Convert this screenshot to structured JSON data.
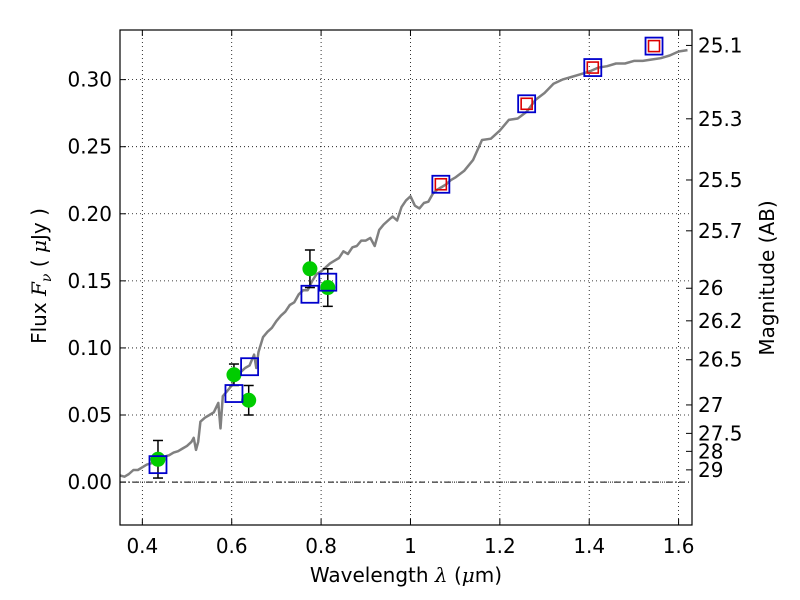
{
  "chart_data": {
    "type": "scatter",
    "xlabel": "Wavelength",
    "xlabel_symbol": "λ",
    "xlabel_unit_open": "(",
    "xlabel_unit_mu": "μ",
    "xlabel_unit_rest": "m)",
    "ylabel": "Flux",
    "ylabel_symbol_F": "F",
    "ylabel_symbol_sub": "ν",
    "ylabel_unit_open": "(",
    "ylabel_unit_mu": "μ",
    "ylabel_unit_rest": "Jy )",
    "y2label": "Magnitude (AB)",
    "xlim": [
      0.35,
      1.63
    ],
    "ylim": [
      -0.032,
      0.337
    ],
    "grid": true,
    "x_ticks": [
      0.4,
      0.6,
      0.8,
      1.0,
      1.2,
      1.4,
      1.6
    ],
    "x_tick_labels": [
      "0.4",
      "0.6",
      "0.8",
      "1",
      "1.2",
      "1.4",
      "1.6"
    ],
    "y_ticks": [
      0.0,
      0.05,
      0.1,
      0.15,
      0.2,
      0.25,
      0.3
    ],
    "y_tick_labels": [
      "0.00",
      "0.05",
      "0.10",
      "0.15",
      "0.20",
      "0.25",
      "0.30"
    ],
    "y2_ticks": [
      {
        "label": "25.1",
        "flux": 0.3255
      },
      {
        "label": "25.3",
        "flux": 0.2708
      },
      {
        "label": "25.5",
        "flux": 0.2252
      },
      {
        "label": "25.7",
        "flux": 0.1873
      },
      {
        "label": "26",
        "flux": 0.1445
      },
      {
        "label": "26.2",
        "flux": 0.1202
      },
      {
        "label": "26.5",
        "flux": 0.0912
      },
      {
        "label": "27",
        "flux": 0.0575
      },
      {
        "label": "27.5",
        "flux": 0.0363
      },
      {
        "label": "28",
        "flux": 0.0229
      },
      {
        "label": "29",
        "flux": 0.0091
      }
    ],
    "template_spectrum": {
      "color": "#808080",
      "x": [
        0.35,
        0.36,
        0.37,
        0.38,
        0.39,
        0.4,
        0.41,
        0.42,
        0.43,
        0.44,
        0.45,
        0.46,
        0.47,
        0.48,
        0.49,
        0.5,
        0.51,
        0.515,
        0.52,
        0.525,
        0.53,
        0.54,
        0.55,
        0.56,
        0.57,
        0.575,
        0.58,
        0.59,
        0.6,
        0.61,
        0.62,
        0.63,
        0.64,
        0.65,
        0.655,
        0.66,
        0.67,
        0.68,
        0.69,
        0.7,
        0.71,
        0.72,
        0.73,
        0.74,
        0.75,
        0.76,
        0.77,
        0.78,
        0.79,
        0.8,
        0.81,
        0.82,
        0.83,
        0.84,
        0.85,
        0.86,
        0.87,
        0.88,
        0.89,
        0.9,
        0.91,
        0.92,
        0.93,
        0.94,
        0.95,
        0.96,
        0.97,
        0.98,
        0.99,
        1.0,
        1.01,
        1.02,
        1.03,
        1.04,
        1.05,
        1.06,
        1.07,
        1.08,
        1.09,
        1.1,
        1.12,
        1.14,
        1.16,
        1.18,
        1.2,
        1.22,
        1.24,
        1.26,
        1.28,
        1.3,
        1.32,
        1.34,
        1.36,
        1.38,
        1.4,
        1.42,
        1.44,
        1.46,
        1.48,
        1.5,
        1.52,
        1.54,
        1.56,
        1.58,
        1.6,
        1.62
      ],
      "y": [
        0.005,
        0.004,
        0.006,
        0.009,
        0.009,
        0.011,
        0.013,
        0.014,
        0.016,
        0.018,
        0.019,
        0.02,
        0.022,
        0.023,
        0.025,
        0.027,
        0.03,
        0.033,
        0.024,
        0.03,
        0.045,
        0.048,
        0.05,
        0.052,
        0.059,
        0.04,
        0.064,
        0.068,
        0.072,
        0.078,
        0.082,
        0.085,
        0.087,
        0.095,
        0.085,
        0.097,
        0.108,
        0.112,
        0.115,
        0.12,
        0.124,
        0.127,
        0.132,
        0.134,
        0.14,
        0.143,
        0.143,
        0.15,
        0.155,
        0.157,
        0.16,
        0.163,
        0.165,
        0.167,
        0.172,
        0.17,
        0.175,
        0.176,
        0.18,
        0.18,
        0.182,
        0.176,
        0.188,
        0.192,
        0.195,
        0.198,
        0.195,
        0.205,
        0.21,
        0.213,
        0.206,
        0.204,
        0.208,
        0.209,
        0.215,
        0.218,
        0.22,
        0.222,
        0.225,
        0.227,
        0.232,
        0.24,
        0.255,
        0.256,
        0.262,
        0.27,
        0.271,
        0.276,
        0.285,
        0.29,
        0.297,
        0.3,
        0.302,
        0.304,
        0.306,
        0.309,
        0.31,
        0.312,
        0.312,
        0.314,
        0.314,
        0.315,
        0.316,
        0.318,
        0.321,
        0.322
      ]
    },
    "series": [
      {
        "name": "",
        "marker": "green-circle",
        "color": "#00cc00",
        "points": [
          {
            "x": 0.435,
            "y": 0.017,
            "yerr": 0.014
          },
          {
            "x": 0.605,
            "y": 0.08,
            "yerr": 0.008
          },
          {
            "x": 0.638,
            "y": 0.061,
            "yerr": 0.011
          },
          {
            "x": 0.775,
            "y": 0.159,
            "yerr": 0.014
          },
          {
            "x": 0.815,
            "y": 0.145,
            "yerr": 0.014
          }
        ]
      },
      {
        "name": "",
        "marker": "blue-square",
        "color": "#0000cc",
        "points": [
          {
            "x": 0.435,
            "y": 0.013
          },
          {
            "x": 0.605,
            "y": 0.066
          },
          {
            "x": 0.64,
            "y": 0.086
          },
          {
            "x": 0.775,
            "y": 0.14
          },
          {
            "x": 0.815,
            "y": 0.149
          },
          {
            "x": 1.068,
            "y": 0.222
          },
          {
            "x": 1.26,
            "y": 0.282
          },
          {
            "x": 1.408,
            "y": 0.309
          },
          {
            "x": 1.545,
            "y": 0.325
          }
        ]
      },
      {
        "name": "",
        "marker": "red-square",
        "color": "#dd0000",
        "points": [
          {
            "x": 1.068,
            "y": 0.222
          },
          {
            "x": 1.26,
            "y": 0.282
          },
          {
            "x": 1.408,
            "y": 0.309
          },
          {
            "x": 1.545,
            "y": 0.325
          }
        ]
      }
    ]
  }
}
